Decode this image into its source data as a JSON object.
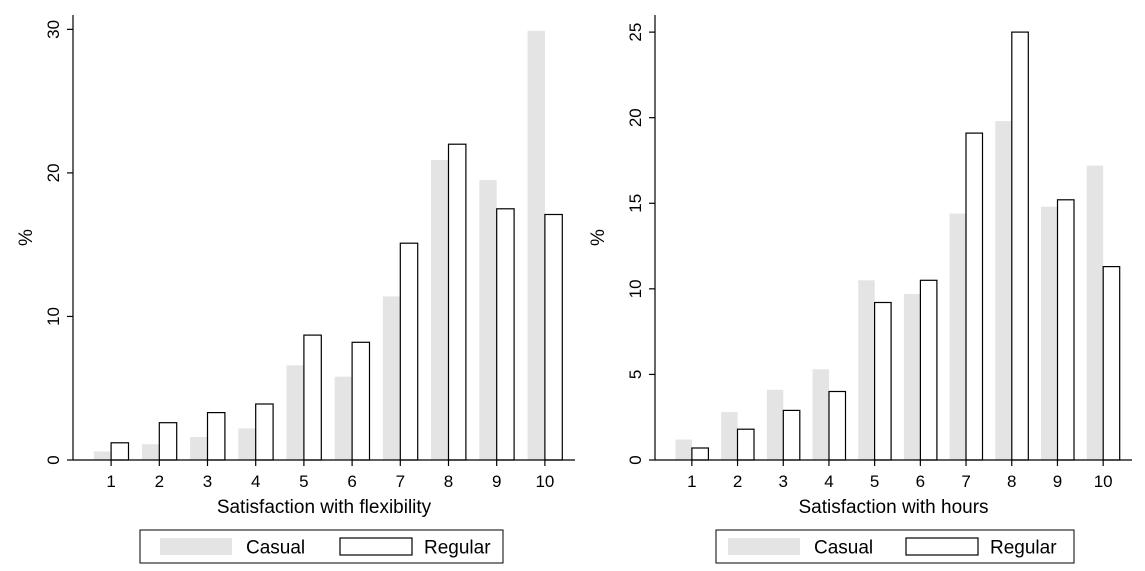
{
  "chart_data": [
    {
      "type": "bar",
      "xlabel": "Satisfaction with flexibility",
      "ylabel": "%",
      "categories": [
        "1",
        "2",
        "3",
        "4",
        "5",
        "6",
        "7",
        "8",
        "9",
        "10"
      ],
      "ylim": [
        0,
        31
      ],
      "yticks": [
        "0",
        "10",
        "20",
        "30"
      ],
      "legend_position": "bottom",
      "series": [
        {
          "name": "Casual",
          "color": "#e4e4e4",
          "values": [
            0.6,
            1.1,
            1.6,
            2.2,
            6.6,
            5.8,
            11.4,
            20.9,
            19.5,
            29.9
          ]
        },
        {
          "name": "Regular",
          "color": "#ffffff",
          "values": [
            1.2,
            2.6,
            3.3,
            3.9,
            8.7,
            8.2,
            15.1,
            22.0,
            17.5,
            17.1
          ]
        }
      ]
    },
    {
      "type": "bar",
      "xlabel": "Satisfaction with hours",
      "ylabel": "%",
      "categories": [
        "1",
        "2",
        "3",
        "4",
        "5",
        "6",
        "7",
        "8",
        "9",
        "10"
      ],
      "ylim": [
        0,
        26
      ],
      "yticks": [
        "0",
        "5",
        "10",
        "15",
        "20",
        "25"
      ],
      "legend_position": "bottom",
      "series": [
        {
          "name": "Casual",
          "color": "#e4e4e4",
          "values": [
            1.2,
            2.8,
            4.1,
            5.3,
            10.5,
            9.7,
            14.4,
            19.8,
            14.8,
            17.2
          ]
        },
        {
          "name": "Regular",
          "color": "#ffffff",
          "values": [
            0.7,
            1.8,
            2.9,
            4.0,
            9.2,
            10.5,
            19.1,
            25.0,
            15.2,
            11.3
          ]
        }
      ]
    }
  ]
}
